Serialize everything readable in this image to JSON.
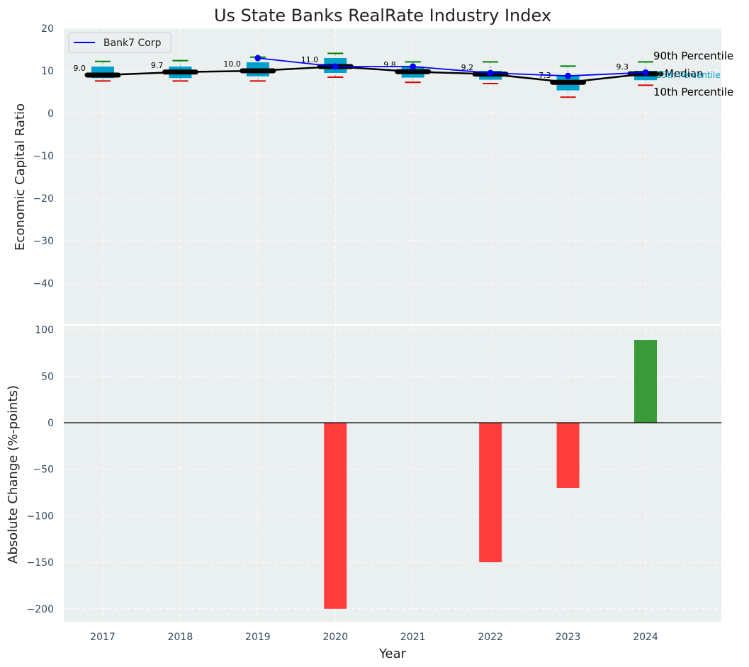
{
  "chart_data": [
    {
      "type": "box",
      "title": "Us State Banks RealRate Industry Index",
      "ylabel": "Economic Capital Ratio",
      "ylim": [
        -48,
        20
      ],
      "yticks": [
        20,
        10,
        0,
        -10,
        -20,
        -30,
        -40
      ],
      "grid": true,
      "categories": [
        "2017",
        "2018",
        "2019",
        "2020",
        "2021",
        "2022",
        "2023",
        "2024"
      ],
      "percentiles": {
        "p10": [
          7.6,
          7.6,
          7.6,
          8.5,
          7.3,
          7.0,
          3.8,
          6.6
        ],
        "p25": [
          8.3,
          8.3,
          8.7,
          9.5,
          8.4,
          7.9,
          5.4,
          7.8
        ],
        "median": [
          9.0,
          9.7,
          10.0,
          11.0,
          9.8,
          9.2,
          7.3,
          9.3
        ],
        "p75": [
          11.0,
          11.0,
          12.0,
          13.0,
          11.0,
          10.0,
          8.8,
          10.0
        ],
        "p90": [
          12.2,
          12.4,
          13.2,
          14.1,
          12.1,
          12.1,
          11.1,
          12.1
        ]
      },
      "median_labels": [
        "9.0",
        "9.7",
        "10.0",
        "11.0",
        "9.8",
        "9.2",
        "7.3",
        "9.3"
      ],
      "series": [
        {
          "name": "Bank7 Corp",
          "x": [
            "2019",
            "2020",
            "2021",
            "2022",
            "2023",
            "2024"
          ],
          "values": [
            13.0,
            11.0,
            11.0,
            9.5,
            8.8,
            9.6
          ],
          "color": "#0000ff"
        }
      ],
      "legend": {
        "placement": "top-left",
        "label": "Bank7 Corp"
      },
      "annotations": {
        "p90": "90th Percentile",
        "median": "Median",
        "p25": "25th Percentile",
        "p10": "10th Percentile"
      },
      "colors": {
        "box": "#00a0cc",
        "median": "#000000",
        "p90_cap": "#008000",
        "p10_cap": "#dd0000",
        "background": "#eaeff0"
      }
    },
    {
      "type": "bar",
      "ylabel": "Absolute Change (%-points)",
      "xlabel": "Year",
      "ylim": [
        -213,
        105
      ],
      "yticks": [
        100,
        50,
        0,
        -50,
        -100,
        -150,
        -200
      ],
      "grid": true,
      "categories": [
        "2017",
        "2018",
        "2019",
        "2020",
        "2021",
        "2022",
        "2023",
        "2024"
      ],
      "values": [
        0,
        0,
        0,
        -200,
        0,
        -150,
        -70,
        89
      ],
      "colors": {
        "positive": "#3a9a3a",
        "negative": "#ff3d3d"
      }
    }
  ]
}
